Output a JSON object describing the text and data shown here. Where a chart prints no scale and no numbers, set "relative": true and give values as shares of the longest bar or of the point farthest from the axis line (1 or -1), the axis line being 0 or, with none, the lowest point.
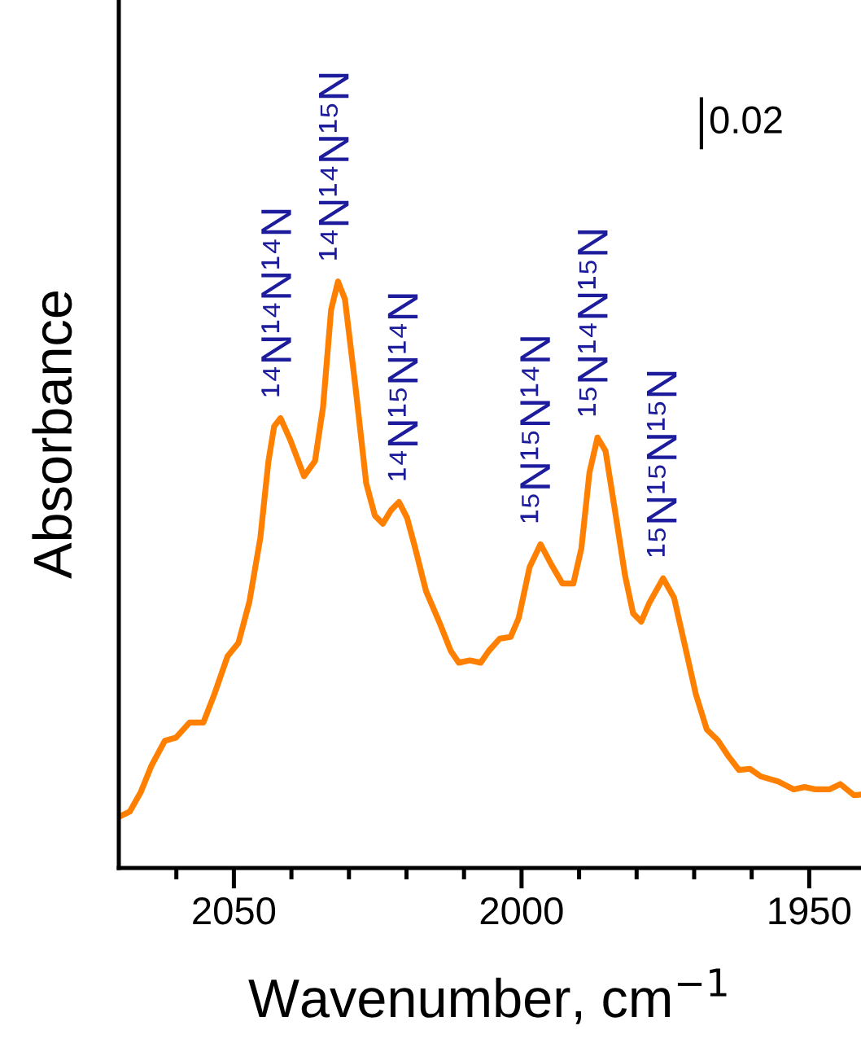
{
  "chart_data": {
    "type": "line",
    "relative": true,
    "xlabel": "Wavenumber, cm$^{−1}$",
    "ylabel": "Absorbance",
    "xlim": [
      2070,
      1941
    ],
    "xticks": [
      {
        "value": 2060,
        "label": null
      },
      2050,
      {
        "value": 2040,
        "label": null
      },
      {
        "value": 2030,
        "label": null
      },
      {
        "value": 2020,
        "label": null
      },
      {
        "value": 2010,
        "label": null
      },
      2000,
      {
        "value": 1990,
        "label": null
      },
      {
        "value": 1980,
        "label": null
      },
      {
        "value": 1970,
        "label": null
      },
      {
        "value": 1960,
        "label": null
      },
      1950
    ],
    "tick_labels": "x",
    "grid": false,
    "legend": false,
    "marker": "none",
    "line_style": "solid",
    "series": [
      {
        "color": "#ff8000",
        "x": [
          2070,
          2068.1,
          2066.2,
          2064.3,
          2062.0,
          2060.1,
          2057.7,
          2055.3,
          2053.4,
          2051.1,
          2049.2,
          2047.3,
          2045.4,
          2044.0,
          2043.0,
          2041.9,
          2040.2,
          2037.8,
          2035.9,
          2034.5,
          2033.1,
          2031.9,
          2030.7,
          2028.9,
          2027.0,
          2025.5,
          2024.1,
          2022.7,
          2021.3,
          2019.9,
          2018.5,
          2016.6,
          2014.2,
          2012.3,
          2010.9,
          2009.0,
          2007.1,
          2005.7,
          2003.8,
          2001.9,
          2000.5,
          1998.6,
          1996.7,
          1994.8,
          1992.9,
          1991.0,
          1989.6,
          1988.2,
          1986.8,
          1985.4,
          1983.9,
          1982.0,
          1980.6,
          1979.2,
          1977.8,
          1975.4,
          1973.5,
          1971.6,
          1969.7,
          1967.8,
          1965.9,
          1964.0,
          1962.2,
          1960.3,
          1958.4,
          1955.5,
          1952.7,
          1950.8,
          1948.9,
          1946.5,
          1944.6,
          1942.2,
          1941
        ],
        "values": [
          0.087,
          0.096,
          0.129,
          0.175,
          0.217,
          0.222,
          0.248,
          0.248,
          0.296,
          0.361,
          0.384,
          0.454,
          0.563,
          0.693,
          0.753,
          0.767,
          0.73,
          0.668,
          0.694,
          0.786,
          0.952,
          1.0,
          0.97,
          0.823,
          0.656,
          0.601,
          0.587,
          0.61,
          0.624,
          0.597,
          0.546,
          0.472,
          0.417,
          0.37,
          0.35,
          0.354,
          0.35,
          0.37,
          0.391,
          0.394,
          0.426,
          0.513,
          0.552,
          0.517,
          0.485,
          0.485,
          0.545,
          0.674,
          0.734,
          0.711,
          0.618,
          0.498,
          0.434,
          0.42,
          0.452,
          0.494,
          0.461,
          0.379,
          0.296,
          0.236,
          0.218,
          0.19,
          0.167,
          0.169,
          0.156,
          0.148,
          0.134,
          0.138,
          0.134,
          0.134,
          0.143,
          0.124,
          0.125
        ]
      }
    ],
    "annotations": [
      {
        "text": "¹⁴N¹⁴N¹⁴N",
        "x": 2042,
        "y": 0.767
      },
      {
        "text": "¹⁴N¹⁴N¹⁵N",
        "x": 2032,
        "y": 1.0
      },
      {
        "text": "¹⁴N¹⁵N¹⁴N",
        "x": 2020,
        "y": 0.624
      },
      {
        "text": "¹⁵N¹⁵N¹⁴N",
        "x": 1997,
        "y": 0.552
      },
      {
        "text": "¹⁵N¹⁴N¹⁵N",
        "x": 1987,
        "y": 0.734
      },
      {
        "text": "¹⁵N¹⁵N¹⁵N",
        "x": 1975,
        "y": 0.494
      },
      "0.02"
    ]
  }
}
